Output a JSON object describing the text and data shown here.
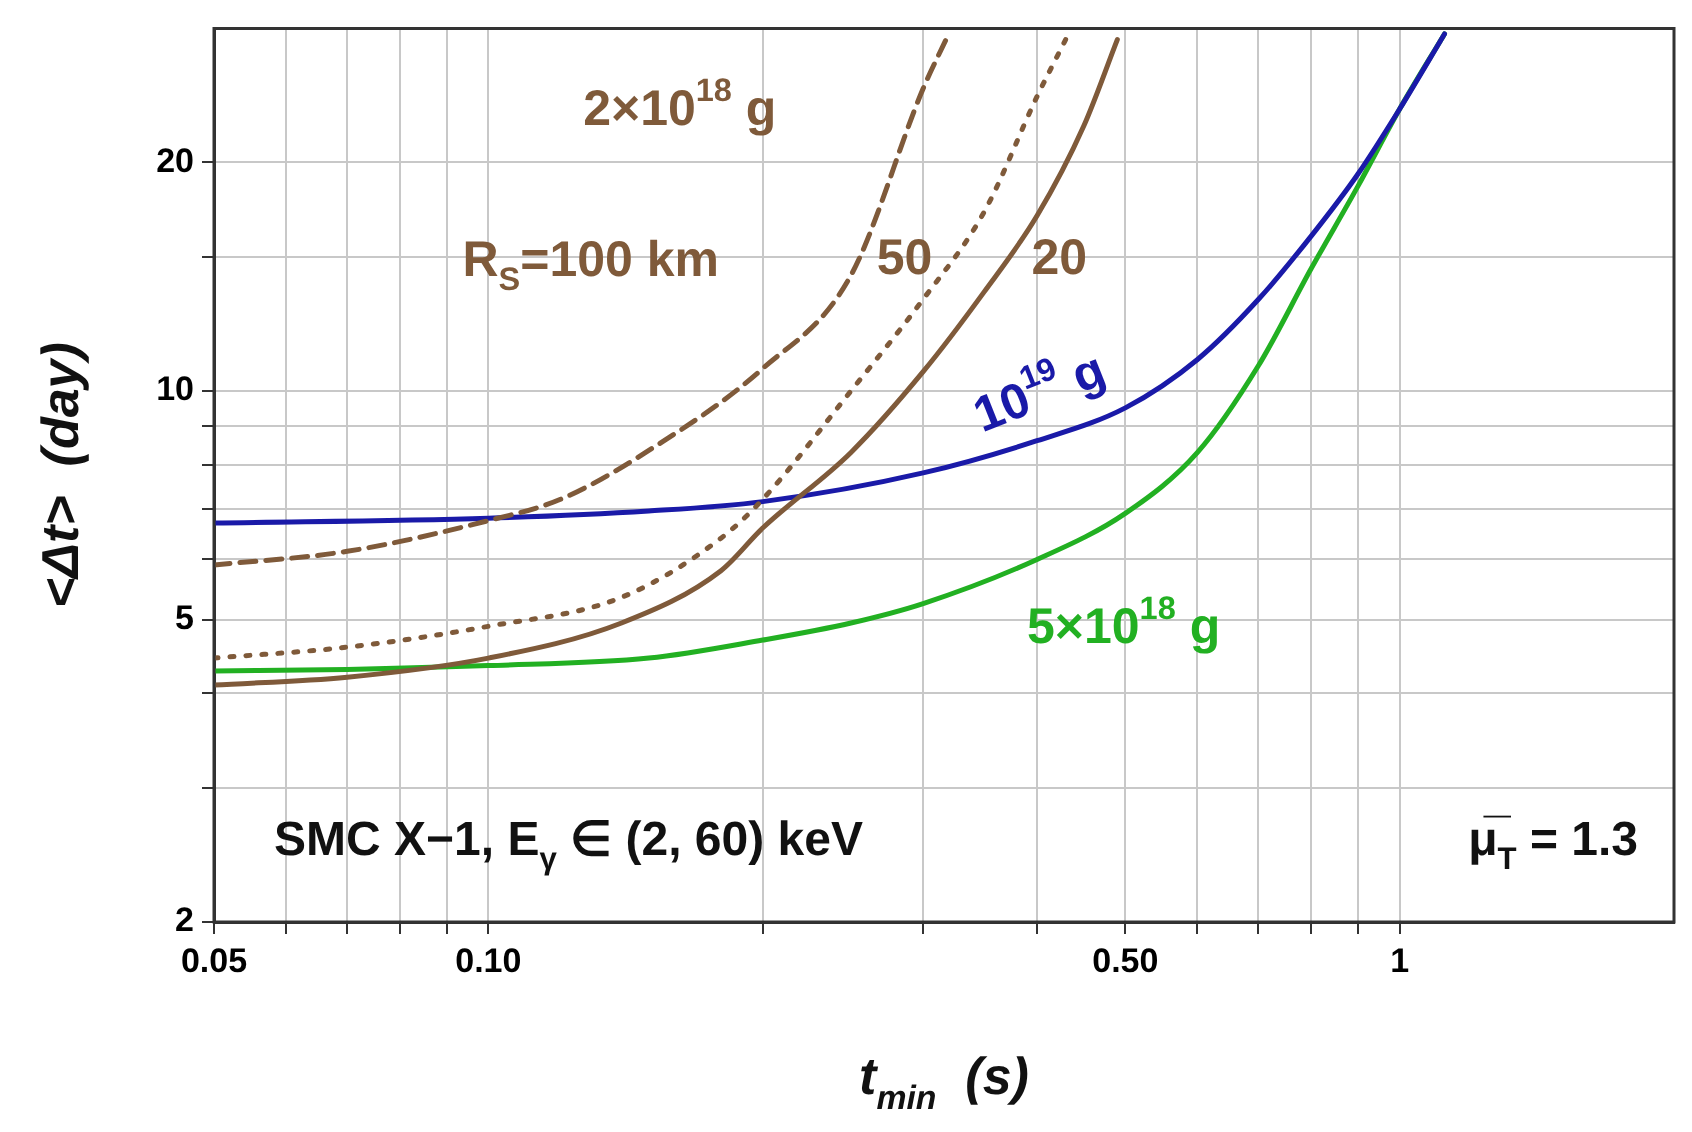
{
  "chart_data": {
    "type": "line",
    "xlabel": "t$_{min}$  (s)",
    "ylabel": "<Δt>  (day)",
    "log": "xy",
    "grid": true,
    "legend": false,
    "marker": "none",
    "xlim": [
      0.05,
      2
    ],
    "ylim": [
      2,
      30
    ],
    "xticks": [
      {
        "value": 0.05,
        "label": "0.05"
      },
      {
        "value": 0.06,
        "label": null
      },
      {
        "value": 0.07,
        "label": null
      },
      {
        "value": 0.08,
        "label": null
      },
      {
        "value": 0.09,
        "label": null
      },
      {
        "value": 0.1,
        "label": "0.10"
      },
      {
        "value": 0.2,
        "label": null
      },
      {
        "value": 0.3,
        "label": null
      },
      {
        "value": 0.4,
        "label": null
      },
      {
        "value": 0.5,
        "label": "0.50"
      },
      {
        "value": 0.6,
        "label": null
      },
      {
        "value": 0.7,
        "label": null
      },
      {
        "value": 0.8,
        "label": null
      },
      {
        "value": 0.9,
        "label": null
      },
      1
    ],
    "yticks": [
      2,
      {
        "value": 3,
        "label": null
      },
      {
        "value": 4,
        "label": null
      },
      5,
      {
        "value": 6,
        "label": null
      },
      {
        "value": 7,
        "label": null
      },
      {
        "value": 8,
        "label": null
      },
      {
        "value": 9,
        "label": null
      },
      10,
      {
        "value": 15,
        "label": null
      },
      20
    ],
    "series": [
      {
        "name": "R$_{S}$=100 km",
        "color": "#7f5a3a",
        "line_style": "dashed",
        "x": [
          0.05,
          0.07,
          0.1,
          0.12,
          0.15,
          0.2,
          0.25,
          0.3,
          0.32
        ],
        "values": [
          5.9,
          6.15,
          6.75,
          7.2,
          8.35,
          10.7,
          14.2,
          25,
          29.5
        ]
      },
      {
        "name": "50",
        "color": "#7f5a3a",
        "line_style": "dotted",
        "x": [
          0.05,
          0.07,
          0.1,
          0.14,
          0.18,
          0.2,
          0.25,
          0.3,
          0.35,
          0.4,
          0.43
        ],
        "values": [
          4.45,
          4.6,
          4.9,
          5.35,
          6.4,
          7.2,
          10,
          13.2,
          17.2,
          24.4,
          29
        ]
      },
      {
        "name": "20",
        "color": "#7f5a3a",
        "line_style": "solid",
        "x": [
          0.05,
          0.07,
          0.1,
          0.14,
          0.18,
          0.2,
          0.25,
          0.3,
          0.35,
          0.4,
          0.45,
          0.49
        ],
        "values": [
          4.1,
          4.2,
          4.45,
          4.95,
          5.8,
          6.6,
          8.3,
          10.6,
          13.5,
          17,
          22.3,
          29
        ]
      },
      {
        "name": "10$^{19}$ g",
        "color": "#1a1aa8",
        "line_style": "solid",
        "x": [
          0.05,
          0.1,
          0.15,
          0.2,
          0.3,
          0.4,
          0.5,
          0.6,
          0.7,
          0.8,
          0.9,
          1,
          1.12
        ],
        "values": [
          6.7,
          6.8,
          6.95,
          7.15,
          7.8,
          8.6,
          9.5,
          11,
          13.2,
          16,
          19.3,
          23.5,
          29.5
        ]
      },
      {
        "name": "5×10$^{18}$ g",
        "color": "#22b022",
        "line_style": "solid",
        "x": [
          0.05,
          0.07,
          0.1,
          0.15,
          0.2,
          0.25,
          0.3,
          0.4,
          0.5,
          0.6,
          0.7,
          0.8,
          0.9,
          1,
          1.12
        ],
        "values": [
          4.28,
          4.3,
          4.35,
          4.45,
          4.7,
          4.95,
          5.25,
          6,
          6.9,
          8.3,
          10.8,
          14.5,
          18.6,
          23.5,
          29.5
        ]
      }
    ],
    "annotations": [
      "2×10$^{18}$ g",
      "SMC X−1, E$_{γ}$ ∈ (2, 60) keV",
      "μ̅$_{T}$ = 1.3"
    ]
  }
}
